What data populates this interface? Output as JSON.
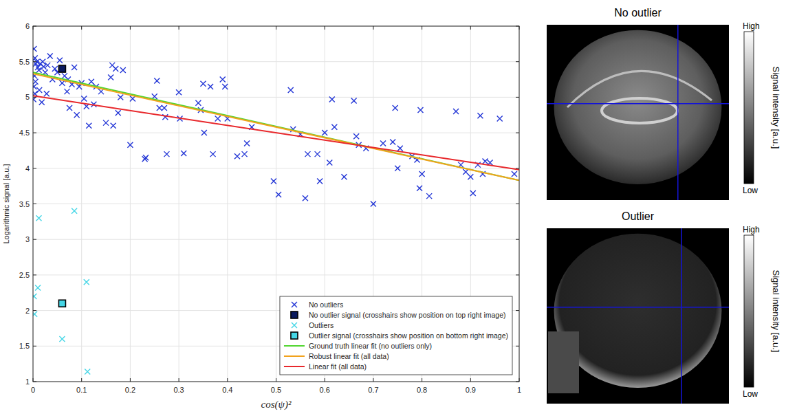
{
  "chart_data": {
    "type": "scatter",
    "x_label": "cos(ψ)²",
    "y_label": "Logarithmic signal [a.u.]",
    "xlim": [
      0,
      1
    ],
    "ylim": [
      1,
      6
    ],
    "xticks": [
      0,
      0.1,
      0.2,
      0.3,
      0.4,
      0.5,
      0.6,
      0.7,
      0.8,
      0.9,
      1
    ],
    "yticks": [
      1,
      1.5,
      2,
      2.5,
      3,
      3.5,
      4,
      4.5,
      5,
      5.5,
      6
    ],
    "grid": true,
    "legend": "lower right",
    "series": [
      {
        "name": "No outliers",
        "type": "scatter",
        "marker": "x",
        "color": "#2336d6",
        "x": [
          0.002,
          0.004,
          0.006,
          0.003,
          0.005,
          0.002,
          0.004,
          0.001,
          0.008,
          0.01,
          0.012,
          0.015,
          0.013,
          0.018,
          0.02,
          0.022,
          0.025,
          0.028,
          0.03,
          0.035,
          0.04,
          0.045,
          0.05,
          0.055,
          0.06,
          0.065,
          0.07,
          0.072,
          0.075,
          0.08,
          0.085,
          0.09,
          0.095,
          0.1,
          0.105,
          0.11,
          0.115,
          0.12,
          0.125,
          0.13,
          0.14,
          0.15,
          0.16,
          0.163,
          0.165,
          0.17,
          0.175,
          0.18,
          0.185,
          0.2,
          0.205,
          0.23,
          0.232,
          0.25,
          0.255,
          0.26,
          0.27,
          0.272,
          0.275,
          0.3,
          0.302,
          0.31,
          0.34,
          0.345,
          0.35,
          0.352,
          0.365,
          0.37,
          0.38,
          0.39,
          0.395,
          0.4,
          0.42,
          0.435,
          0.44,
          0.45,
          0.495,
          0.505,
          0.53,
          0.535,
          0.55,
          0.56,
          0.565,
          0.585,
          0.59,
          0.6,
          0.61,
          0.615,
          0.62,
          0.64,
          0.66,
          0.665,
          0.67,
          0.685,
          0.7,
          0.72,
          0.74,
          0.745,
          0.75,
          0.755,
          0.78,
          0.79,
          0.795,
          0.797,
          0.8,
          0.815,
          0.87,
          0.88,
          0.89,
          0.9,
          0.905,
          0.915,
          0.92,
          0.925,
          0.93,
          0.94,
          0.96,
          0.99
        ],
        "values": [
          5.68,
          5.55,
          5.47,
          5.3,
          5.22,
          5.15,
          5.05,
          4.97,
          5.5,
          5.42,
          5.38,
          5.47,
          5.1,
          4.93,
          5.5,
          5.43,
          5.35,
          5.05,
          5.45,
          5.58,
          5.25,
          5.4,
          5.35,
          5.52,
          5.2,
          5.3,
          5.08,
          5.25,
          4.85,
          5.18,
          5.42,
          4.75,
          5.15,
          5.2,
          4.98,
          4.87,
          4.6,
          5.22,
          4.9,
          5.15,
          5.08,
          4.64,
          5.28,
          5.45,
          4.6,
          5.4,
          4.78,
          5.0,
          5.38,
          4.33,
          4.98,
          4.13,
          4.15,
          5.01,
          5.23,
          4.85,
          4.85,
          4.72,
          4.2,
          5.07,
          4.7,
          4.21,
          4.92,
          4.82,
          5.19,
          4.5,
          5.15,
          4.2,
          4.7,
          5.25,
          5.15,
          4.7,
          4.17,
          4.2,
          4.35,
          4.58,
          3.82,
          3.63,
          5.1,
          4.55,
          4.48,
          3.58,
          4.2,
          4.2,
          3.82,
          4.5,
          4.08,
          4.97,
          4.58,
          3.88,
          4.95,
          4.45,
          4.33,
          4.28,
          3.5,
          4.35,
          4.37,
          4.85,
          4.0,
          4.28,
          4.17,
          4.12,
          3.72,
          4.82,
          3.92,
          3.61,
          4.8,
          4.05,
          3.95,
          3.88,
          3.65,
          4.05,
          4.74,
          3.92,
          4.1,
          4.08,
          4.7,
          3.92
        ]
      },
      {
        "name": "No outlier signal (crosshairs show position on top right image)",
        "type": "scatter",
        "marker": "square",
        "color": "#0b1a5e",
        "x": [
          0.06
        ],
        "values": [
          5.4
        ]
      },
      {
        "name": "Outliers",
        "type": "scatter",
        "marker": "x",
        "color": "#45d6e6",
        "x": [
          0.002,
          0.003,
          0.01,
          0.012,
          0.06,
          0.085,
          0.11,
          0.112
        ],
        "values": [
          2.2,
          1.95,
          2.32,
          3.3,
          1.6,
          3.4,
          2.4,
          1.14
        ]
      },
      {
        "name": "Outlier signal (crosshairs show position on bottom right image)",
        "type": "scatter",
        "marker": "square",
        "color": "#45d6e6",
        "x": [
          0.06
        ],
        "values": [
          2.1
        ]
      },
      {
        "name": "Ground truth linear fit (no outliers only)",
        "type": "line",
        "line_style": "solid",
        "color": "#52d630",
        "x": [
          0,
          1
        ],
        "values": [
          5.35,
          3.83
        ]
      },
      {
        "name": "Robust linear fit (all data)",
        "type": "line",
        "line_style": "solid",
        "color": "#f2a21c",
        "x": [
          0,
          1
        ],
        "values": [
          5.33,
          3.83
        ]
      },
      {
        "name": "Linear fit (all data)",
        "type": "line",
        "line_style": "solid",
        "color": "#e8282c",
        "x": [
          0,
          1
        ],
        "values": [
          5.02,
          3.98
        ]
      }
    ]
  },
  "images": [
    {
      "title": "No outlier",
      "colorbar": {
        "label": "Signal intensity [a.u.]",
        "max_label": "High",
        "min_label": "Low"
      }
    },
    {
      "title": "Outlier",
      "colorbar": {
        "label": "Signal intensity [a.u.]",
        "max_label": "High",
        "min_label": "Low"
      }
    }
  ]
}
